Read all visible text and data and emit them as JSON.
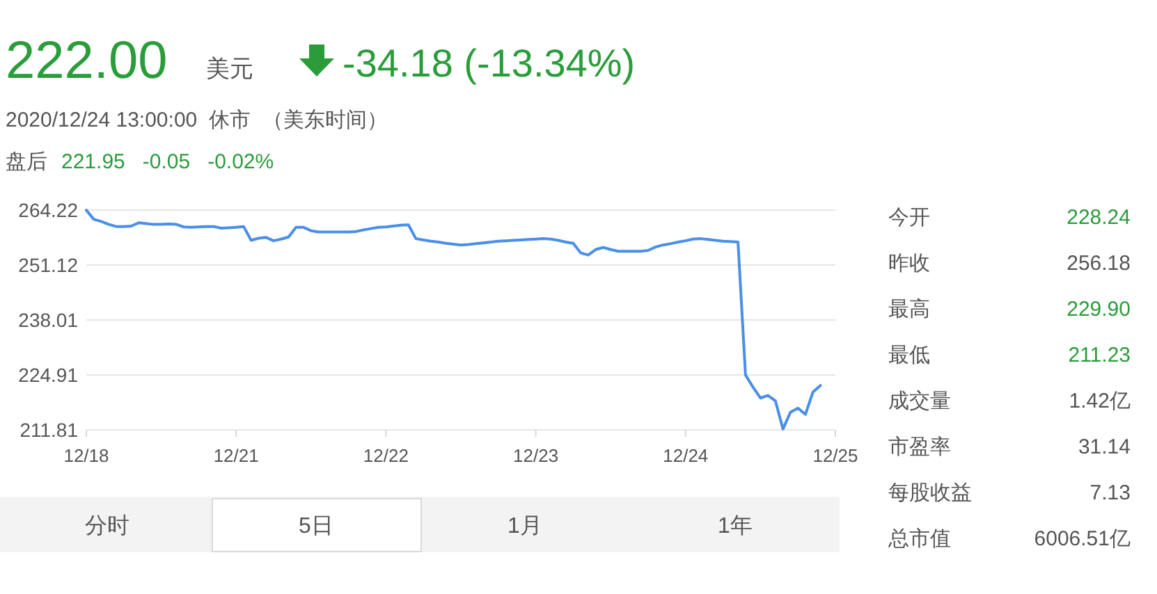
{
  "chart_data": {
    "type": "line",
    "title": "222.00",
    "annotations": [
      "美元",
      "-34.18 (-13.34%)",
      "2020/12/24 13:00:00  休市  （美东时间）",
      "盘后",
      "221.95   -0.05   -0.02%",
      "今开",
      "228.24",
      "昨收",
      "256.18",
      "最高",
      "229.90",
      "最低",
      "211.23",
      "成交量",
      "1.42亿",
      "市盈率",
      "31.14",
      "每股收益",
      "7.13",
      "总市值",
      "6006.51亿",
      "分时",
      "5日",
      "1月",
      "1年"
    ],
    "categories": [
      "12/18",
      null,
      null,
      null,
      null,
      null,
      null,
      null,
      null,
      null,
      null,
      null,
      null,
      null,
      null,
      null,
      null,
      null,
      null,
      null,
      "12/21",
      null,
      null,
      null,
      null,
      null,
      null,
      null,
      null,
      null,
      null,
      null,
      null,
      null,
      null,
      null,
      null,
      null,
      null,
      null,
      "12/22",
      null,
      null,
      null,
      null,
      null,
      null,
      null,
      null,
      null,
      null,
      null,
      null,
      null,
      null,
      null,
      null,
      null,
      null,
      null,
      "12/23",
      null,
      null,
      null,
      null,
      null,
      null,
      null,
      null,
      null,
      null,
      null,
      null,
      null,
      null,
      null,
      null,
      null,
      null,
      null,
      "12/24",
      null,
      null,
      null,
      null,
      null,
      null,
      null,
      null,
      null,
      null,
      null,
      null,
      null,
      null,
      null,
      null,
      null,
      null,
      null,
      "12/25"
    ],
    "series": [
      {
        "color": "#4a8fe7",
        "values": [
          264.2,
          262.0,
          261.5,
          260.8,
          260.3,
          260.3,
          260.4,
          261.2,
          261.0,
          260.8,
          260.8,
          260.9,
          260.8,
          260.2,
          260.1,
          260.2,
          260.3,
          260.3,
          259.9,
          260.0,
          260.1,
          260.3,
          257.0,
          257.5,
          257.7,
          256.9,
          257.3,
          257.8,
          260.1,
          260.1,
          259.3,
          259.0,
          259.0,
          259.0,
          259.0,
          259.0,
          259.1,
          259.5,
          259.8,
          260.1,
          260.2,
          260.4,
          260.6,
          260.7,
          257.4,
          257.1,
          256.8,
          256.6,
          256.3,
          256.1,
          255.9,
          256.0,
          256.2,
          256.4,
          256.6,
          256.8,
          256.9,
          257.0,
          257.1,
          257.2,
          257.3,
          257.4,
          257.3,
          257.0,
          256.6,
          256.3,
          254.0,
          253.5,
          254.8,
          255.3,
          254.8,
          254.4,
          254.4,
          254.4,
          254.4,
          254.6,
          255.4,
          255.9,
          256.2,
          256.6,
          256.9,
          257.3,
          257.4,
          257.2,
          257.0,
          256.8,
          256.7,
          256.6,
          224.9,
          222.0,
          219.4,
          220.0,
          218.7,
          212.0,
          216.0,
          217.0,
          215.5,
          220.8,
          222.4,
          null,
          null
        ]
      }
    ],
    "ylim": [
      211.81,
      264.22
    ],
    "yticks": [
      {
        "value": 211.81,
        "label": "211.81"
      },
      {
        "value": 224.91,
        "label": "224.91"
      },
      {
        "value": 238.01,
        "label": "238.01"
      },
      {
        "value": 251.12,
        "label": "251.12"
      },
      {
        "value": 264.22,
        "label": "264.22"
      }
    ],
    "grid": "y"
  }
}
